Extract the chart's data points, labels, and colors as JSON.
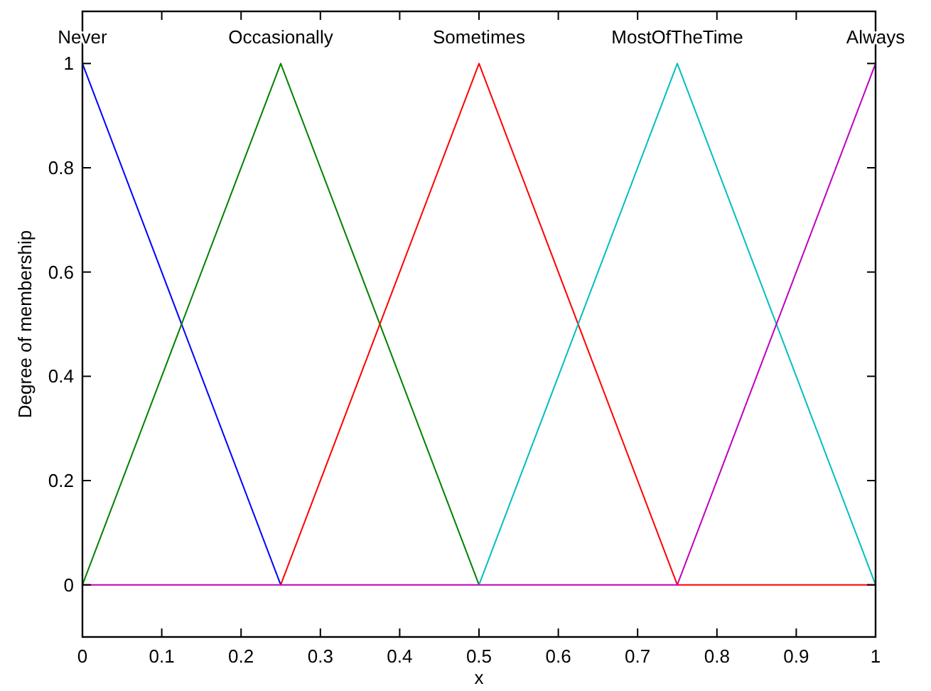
{
  "chart_data": {
    "type": "line",
    "xlabel": "x",
    "ylabel": "Degree of membership",
    "series": [
      {
        "name": "Never",
        "color": "#0000ff",
        "x": [
          0,
          0.25
        ],
        "values": [
          1,
          0
        ]
      },
      {
        "name": "Occasionally",
        "color": "#008000",
        "x": [
          0,
          0.25,
          0.5
        ],
        "values": [
          0,
          1,
          0
        ]
      },
      {
        "name": "Sometimes",
        "color": "#ff0000",
        "x": [
          0.25,
          0.5,
          0.75,
          1
        ],
        "values": [
          0,
          1,
          0,
          0
        ]
      },
      {
        "name": "MostOfTheTime",
        "color": "#00bfbf",
        "x": [
          0.5,
          0.75,
          1
        ],
        "values": [
          0,
          1,
          0
        ]
      },
      {
        "name": "Always",
        "color": "#bf00bf",
        "x": [
          0,
          0.75,
          1
        ],
        "values": [
          0,
          0,
          1
        ]
      }
    ],
    "xlim": [
      0,
      1
    ],
    "xticks": [
      0,
      0.1,
      0.2,
      0.3,
      0.4,
      0.5,
      0.6,
      0.7,
      0.8,
      0.9,
      1
    ],
    "ylim": [
      -0.1,
      1.1
    ],
    "yticks": [
      0,
      0.2,
      0.4,
      0.6,
      0.8,
      1
    ],
    "grid": false,
    "marker": "none",
    "line_style": "solid"
  }
}
